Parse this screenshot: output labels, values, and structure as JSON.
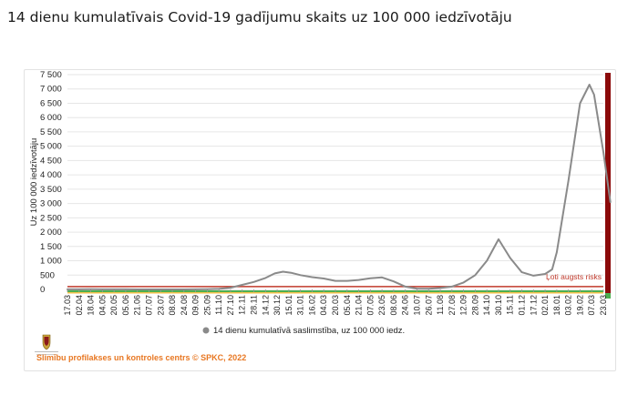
{
  "page": {
    "title": "14 dienu kumulatīvais Covid-19 gadījumu skaits uz 100 000 iedzīvotāju"
  },
  "footer": {
    "credit": "Slimību profilakses un kontroles centrs © SPKC, 2022"
  },
  "colors": {
    "line": "#8a8a8a",
    "threshold_line": "#c0392b",
    "risk_bar": "#8b0a0a",
    "green_band": "#4caf50",
    "yellow_band": "#f3c14a",
    "credit": "#e87722"
  },
  "chart_data": {
    "type": "line",
    "title": "",
    "xlabel": "",
    "ylabel": "Uz 100 000 iedzīvotāju",
    "ylim": [
      0,
      7500
    ],
    "yticks": [
      0,
      500,
      1000,
      1500,
      2000,
      2500,
      3000,
      3500,
      4000,
      4500,
      5000,
      5500,
      6000,
      6500,
      7000,
      7500
    ],
    "ytick_labels": [
      "0",
      "500",
      "1 000",
      "1 500",
      "2 000",
      "2 500",
      "3 000",
      "3 500",
      "4 000",
      "4 500",
      "5 000",
      "5 500",
      "6 000",
      "6 500",
      "7 000",
      "7 500"
    ],
    "x_tick_labels": [
      "17.03",
      "02.04",
      "18.04",
      "04.05",
      "20.05",
      "05.06",
      "21.06",
      "07.07",
      "23.07",
      "08.08",
      "24.08",
      "09.09",
      "25.09",
      "11.10",
      "27.10",
      "12.11",
      "28.11",
      "14.12",
      "30.12",
      "15.01",
      "31.01",
      "16.02",
      "04.03",
      "20.03",
      "05.04",
      "21.04",
      "07.05",
      "23.05",
      "08.06",
      "24.06",
      "10.07",
      "26.07",
      "11.08",
      "27.08",
      "12.09",
      "28.09",
      "14.10",
      "30.10",
      "15.11",
      "01.12",
      "17.12",
      "02.01",
      "18.01",
      "03.02",
      "19.02",
      "07.03",
      "23.03"
    ],
    "legend": {
      "position": "bottom",
      "entries": [
        "14 dienu kumulatīvā saslimstība, uz 100 000 iedz."
      ]
    },
    "threshold": {
      "value": 100,
      "label": "Ļoti augsts risks"
    },
    "series": [
      {
        "name": "14 dienu kumulatīvā saslimstība, uz 100 000 iedz.",
        "values": [
          [
            0,
            2
          ],
          [
            1,
            4
          ],
          [
            2,
            6
          ],
          [
            3,
            4
          ],
          [
            4,
            3
          ],
          [
            5,
            2
          ],
          [
            6,
            1
          ],
          [
            7,
            1
          ],
          [
            8,
            0
          ],
          [
            9,
            0
          ],
          [
            10,
            1
          ],
          [
            11,
            3
          ],
          [
            12,
            8
          ],
          [
            13,
            20
          ],
          [
            14,
            60
          ],
          [
            15,
            160
          ],
          [
            16,
            260
          ],
          [
            17,
            400
          ],
          [
            17.8,
            560
          ],
          [
            18.5,
            620
          ],
          [
            19.2,
            580
          ],
          [
            20,
            500
          ],
          [
            21,
            430
          ],
          [
            22,
            380
          ],
          [
            23,
            300
          ],
          [
            24,
            300
          ],
          [
            25,
            330
          ],
          [
            26,
            390
          ],
          [
            27,
            420
          ],
          [
            28,
            280
          ],
          [
            29,
            100
          ],
          [
            30,
            30
          ],
          [
            31,
            25
          ],
          [
            32,
            50
          ],
          [
            33,
            100
          ],
          [
            34,
            240
          ],
          [
            35,
            500
          ],
          [
            36,
            1000
          ],
          [
            37,
            1750
          ],
          [
            38,
            1100
          ],
          [
            39,
            600
          ],
          [
            40,
            480
          ],
          [
            41,
            540
          ],
          [
            41.6,
            700
          ],
          [
            42,
            1300
          ],
          [
            43,
            3800
          ],
          [
            44,
            6500
          ],
          [
            44.8,
            7150
          ],
          [
            45.2,
            6800
          ],
          [
            46,
            4800
          ],
          [
            46.6,
            3050
          ]
        ]
      }
    ]
  }
}
